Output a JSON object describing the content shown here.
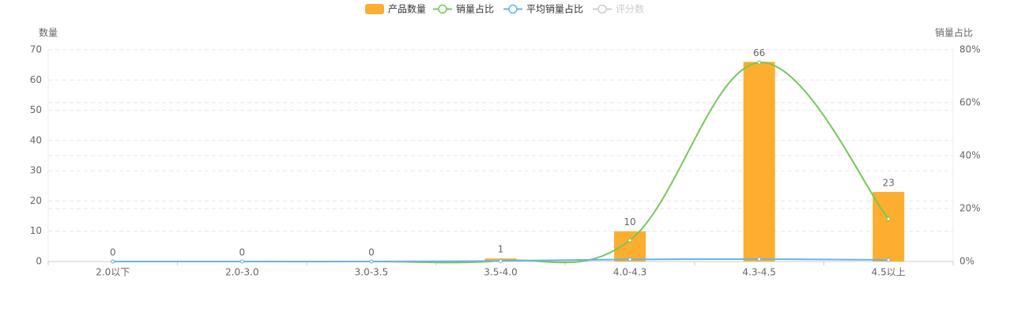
{
  "chart_data": {
    "type": "bar",
    "categories": [
      "2.0以下",
      "2.0-3.0",
      "3.0-3.5",
      "3.5-4.0",
      "4.0-4.3",
      "4.3-4.5",
      "4.5以上"
    ],
    "series": [
      {
        "name": "产品数量",
        "type": "bar",
        "color": "#fdae2e",
        "values": [
          0,
          0,
          0,
          1,
          10,
          66,
          23
        ]
      },
      {
        "name": "销量占比",
        "type": "line",
        "axis": "y2",
        "color": "#75c85a",
        "values": [
          0,
          0,
          0,
          0.3,
          8,
          75.2,
          16.1
        ]
      },
      {
        "name": "平均销量占比",
        "type": "line",
        "axis": "y2",
        "color": "#6cb2ea",
        "values": [
          0,
          0,
          0,
          0.2,
          0.8,
          0.9,
          0.6
        ]
      },
      {
        "name": "评分数",
        "type": "line",
        "hidden": true,
        "color": "#cccccc"
      }
    ],
    "ylabel": "数量",
    "y2label": "销量占比",
    "ylim": [
      0,
      70
    ],
    "yticks": [
      0,
      10,
      20,
      30,
      40,
      50,
      60,
      70
    ],
    "y2lim": [
      0,
      80
    ],
    "y2ticks": [
      {
        "value": 0,
        "label": "0%"
      },
      {
        "value": 20,
        "label": "20%"
      },
      {
        "value": 40,
        "label": "40%"
      },
      {
        "value": 60,
        "label": "60%"
      },
      {
        "value": 80,
        "label": "80%"
      }
    ],
    "grid": true
  }
}
